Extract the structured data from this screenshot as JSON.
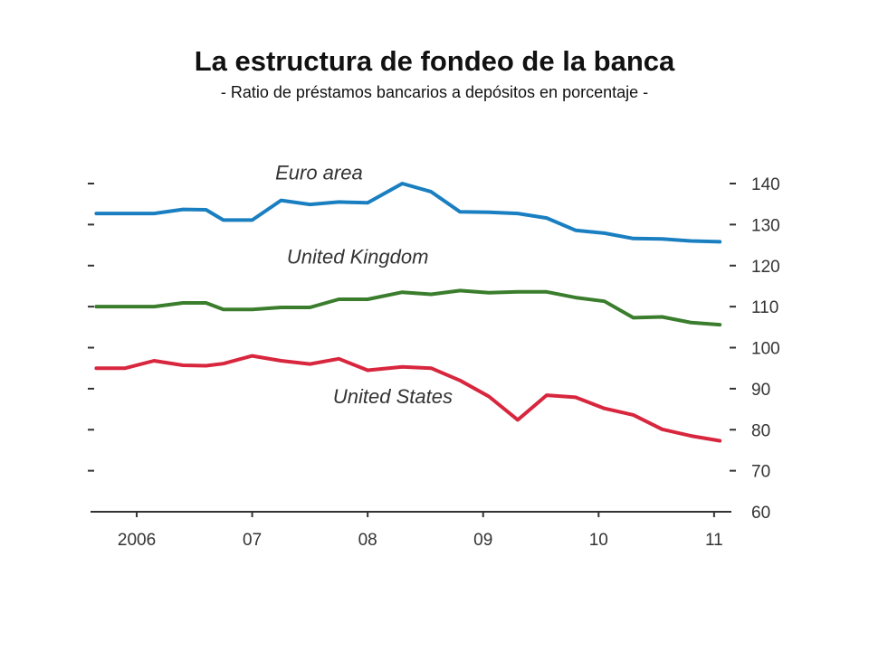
{
  "title": "La estructura de fondeo de la banca",
  "subtitle": "- Ratio de préstamos bancarios a depósitos en porcentaje -",
  "chart_data": {
    "type": "line",
    "x_tick_labels": [
      "2006",
      "07",
      "08",
      "09",
      "10",
      "11"
    ],
    "x_tick_years": [
      2006,
      2007,
      2008,
      2009,
      2010,
      2011
    ],
    "y_tick_labels": [
      "140",
      "130",
      "120",
      "110",
      "100",
      "90",
      "80",
      "70",
      "60"
    ],
    "ylim": [
      60,
      140
    ],
    "xlim": [
      2005.6,
      2011.15
    ],
    "grid": false,
    "colors": {
      "euro": "#1a7fc1",
      "uk": "#3a7d2c",
      "us": "#d7263d"
    },
    "series": [
      {
        "name": "Euro area",
        "x": [
          2005.65,
          2005.9,
          2006.15,
          2006.4,
          2006.6,
          2006.75,
          2007.0,
          2007.25,
          2007.5,
          2007.75,
          2008.0,
          2008.3,
          2008.55,
          2008.8,
          2009.05,
          2009.3,
          2009.55,
          2009.8,
          2010.05,
          2010.3,
          2010.55,
          2010.8,
          2011.05
        ],
        "y": [
          132.7,
          132.7,
          132.7,
          133.7,
          133.6,
          131.1,
          131.1,
          135.9,
          134.9,
          135.5,
          135.3,
          140.0,
          138.0,
          133.1,
          133.0,
          132.7,
          131.6,
          128.6,
          127.9,
          126.6,
          126.5,
          126.0,
          125.8
        ]
      },
      {
        "name": "United Kingdom",
        "x": [
          2005.65,
          2005.9,
          2006.15,
          2006.4,
          2006.6,
          2006.75,
          2007.0,
          2007.25,
          2007.5,
          2007.75,
          2008.0,
          2008.3,
          2008.55,
          2008.8,
          2009.05,
          2009.3,
          2009.55,
          2009.8,
          2010.05,
          2010.3,
          2010.55,
          2010.8,
          2011.05
        ],
        "y": [
          110.0,
          110.0,
          110.0,
          110.9,
          110.9,
          109.3,
          109.3,
          109.8,
          109.8,
          111.8,
          111.8,
          113.5,
          113.0,
          113.9,
          113.4,
          113.6,
          113.6,
          112.2,
          111.3,
          107.3,
          107.5,
          106.1,
          105.6
        ]
      },
      {
        "name": "United States",
        "x": [
          2005.65,
          2005.9,
          2006.15,
          2006.4,
          2006.6,
          2006.75,
          2007.0,
          2007.25,
          2007.5,
          2007.75,
          2008.0,
          2008.3,
          2008.55,
          2008.8,
          2009.05,
          2009.3,
          2009.55,
          2009.8,
          2010.05,
          2010.3,
          2010.55,
          2010.8,
          2011.05
        ],
        "y": [
          95.0,
          95.0,
          96.8,
          95.7,
          95.6,
          96.1,
          98.0,
          96.8,
          96.0,
          97.3,
          94.5,
          95.3,
          95.0,
          92.0,
          88.1,
          82.4,
          88.4,
          87.9,
          85.2,
          83.6,
          80.1,
          78.5,
          77.3
        ]
      }
    ],
    "series_labels": [
      {
        "name": "Euro area",
        "x": 2007.2,
        "y": 141
      },
      {
        "name": "United Kingdom",
        "x": 2007.3,
        "y": 120.5
      },
      {
        "name": "United States",
        "x": 2007.7,
        "y": 86.5
      }
    ]
  }
}
